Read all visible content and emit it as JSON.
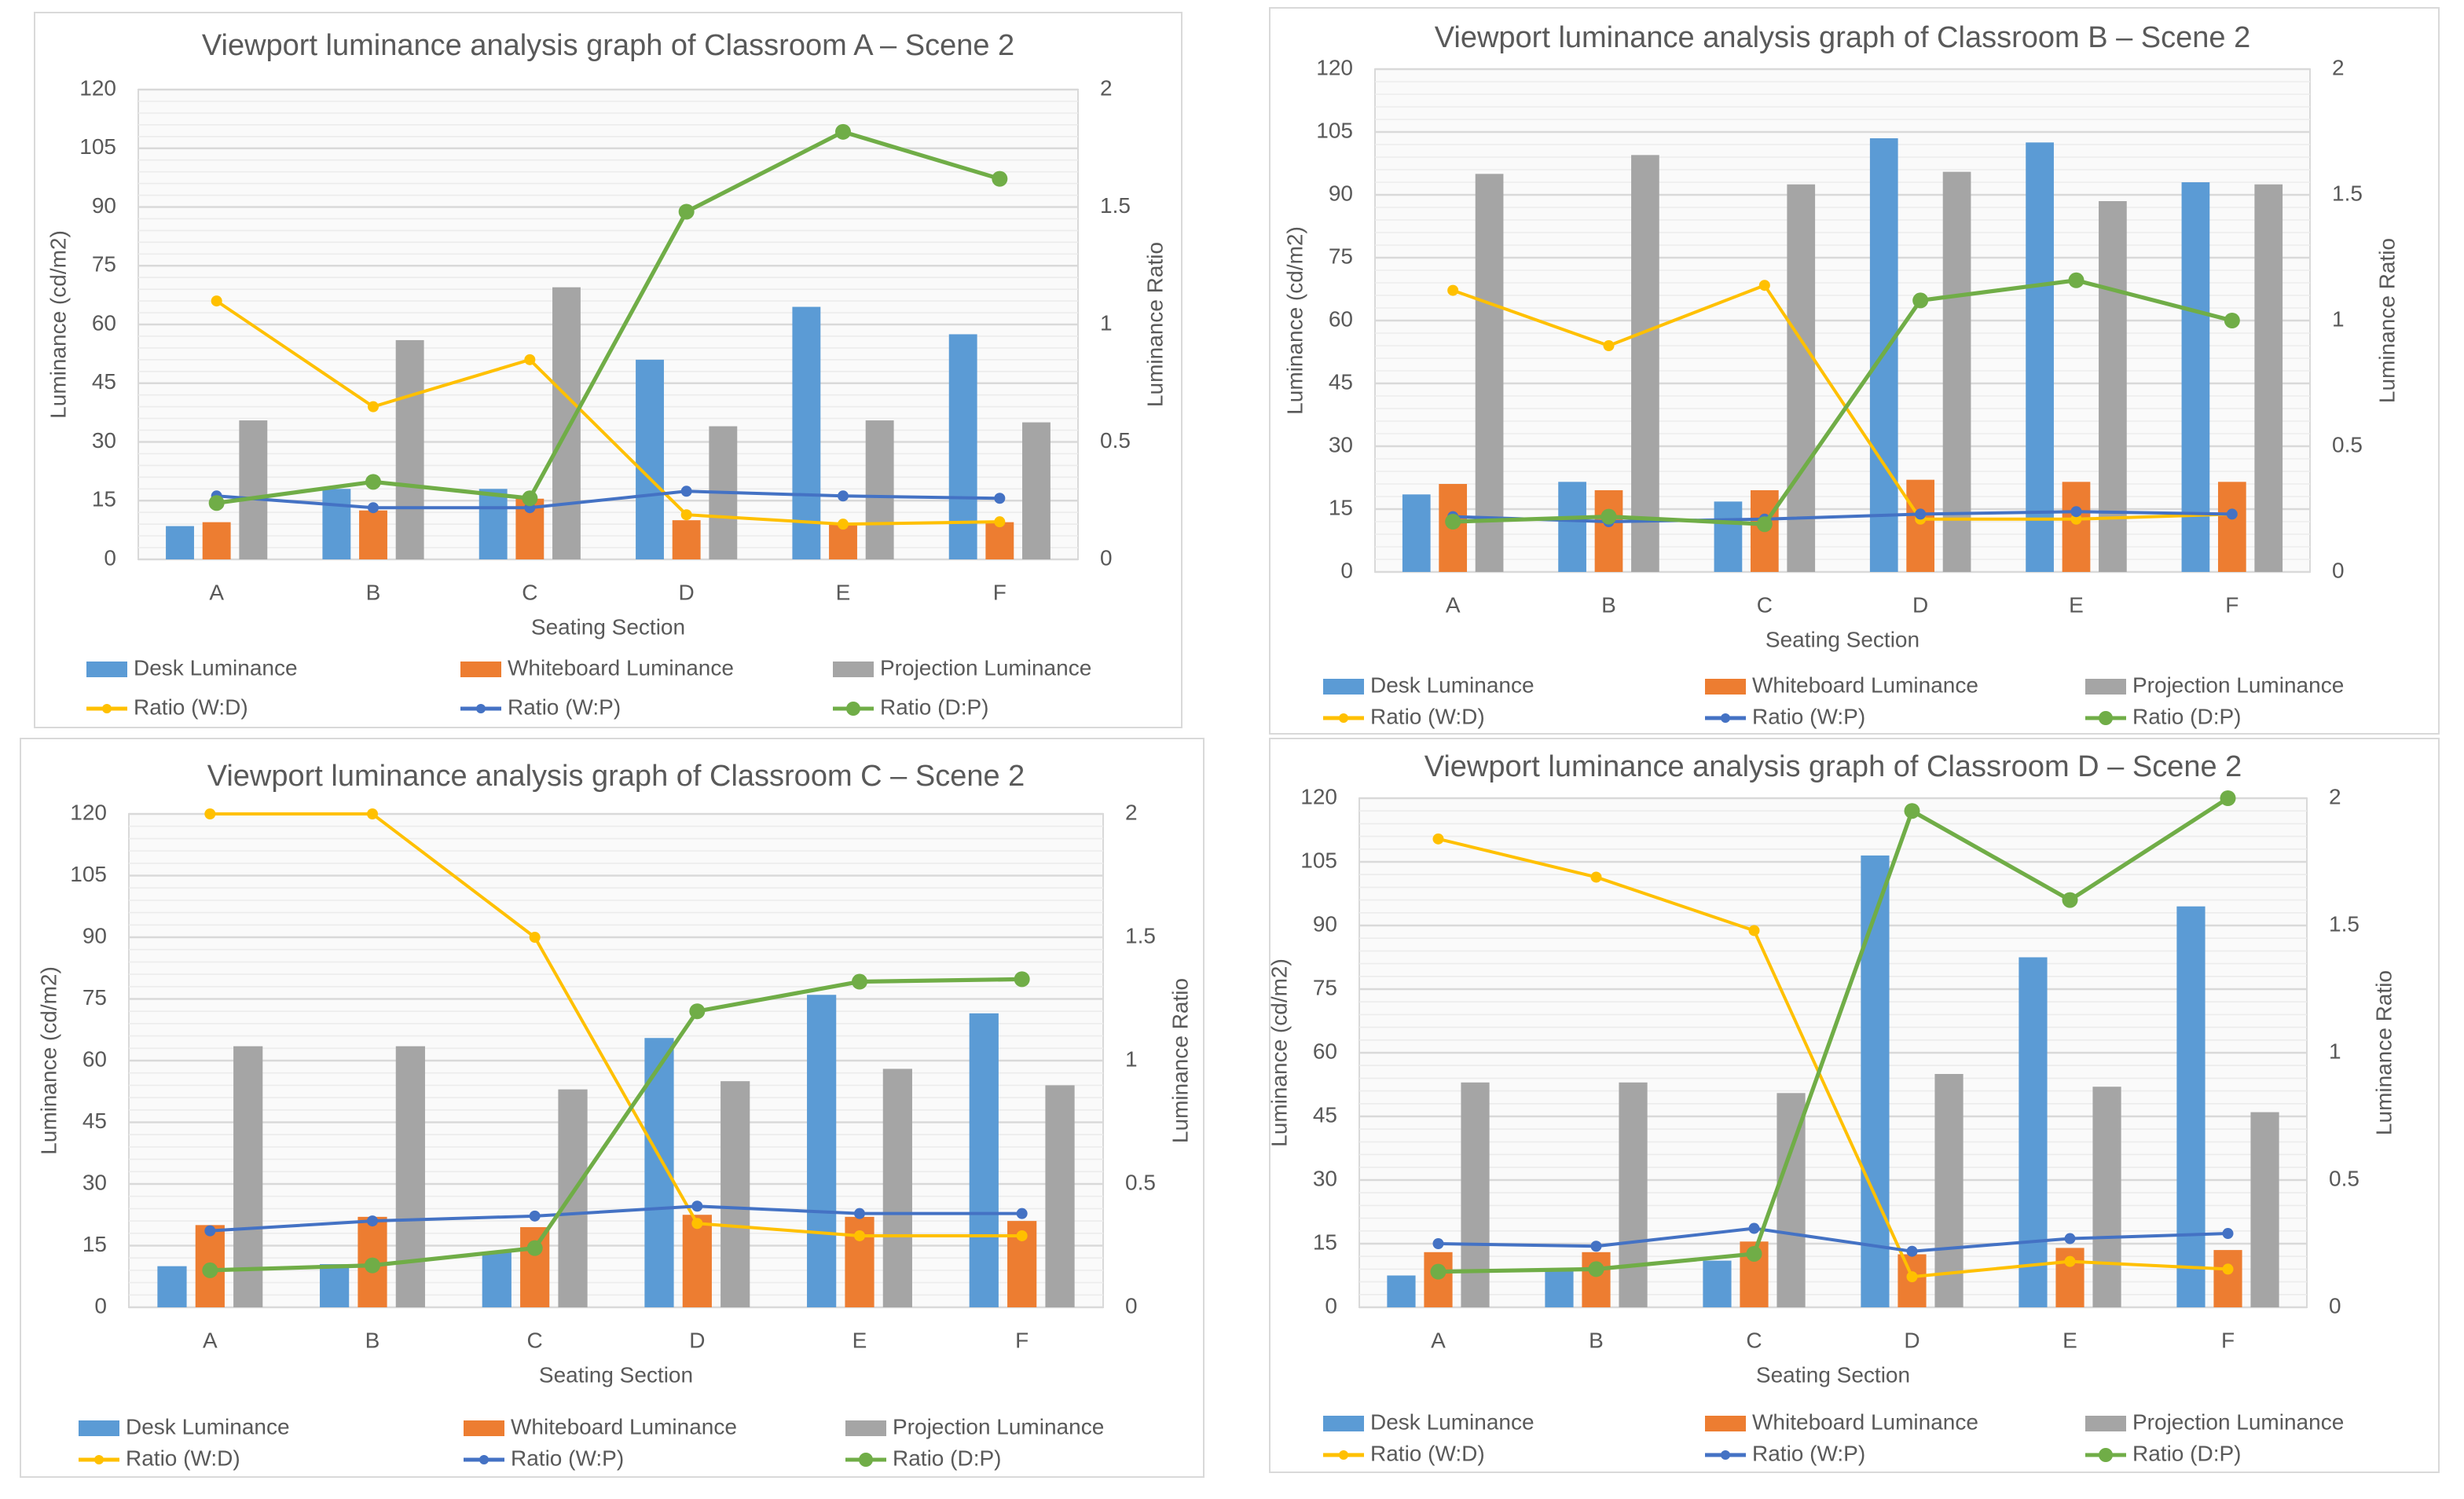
{
  "chart_data": [
    {
      "type": "bar+line",
      "title": "Viewport luminance analysis graph of Classroom A – Scene 2",
      "xlabel": "Seating Section",
      "ylabel": "Luminance (cd/m2)",
      "y2label": "Luminance Ratio",
      "categories": [
        "A",
        "B",
        "C",
        "D",
        "E",
        "F"
      ],
      "ylim": [
        0,
        120
      ],
      "yticks": [
        "0",
        "15",
        "30",
        "45",
        "60",
        "75",
        "90",
        "105",
        "120"
      ],
      "y2lim": [
        0,
        2
      ],
      "y2ticks": [
        "0",
        "0.5",
        "1",
        "1.5",
        "2"
      ],
      "grid": true,
      "legend": "bottom",
      "bar_series": [
        {
          "name": "Desk Luminance",
          "color": "#5B9BD5",
          "values": [
            8.5,
            18,
            18,
            51,
            64.5,
            57.5
          ]
        },
        {
          "name": "Whiteboard Luminance",
          "color": "#ED7D31",
          "values": [
            9.5,
            12.5,
            15.5,
            10,
            9,
            9.5
          ]
        },
        {
          "name": "Projection Luminance",
          "color": "#A5A5A5",
          "values": [
            35.5,
            56,
            69.5,
            34,
            35.5,
            35
          ]
        }
      ],
      "line_series": [
        {
          "name": "Ratio (W:D)",
          "color": "#FFC000",
          "values": [
            1.1,
            0.65,
            0.85,
            0.19,
            0.15,
            0.16
          ]
        },
        {
          "name": "Ratio (W:P)",
          "color": "#4472C4",
          "values": [
            0.27,
            0.22,
            0.22,
            0.29,
            0.27,
            0.26
          ]
        },
        {
          "name": "Ratio (D:P)",
          "color": "#70AD47",
          "values": [
            0.24,
            0.33,
            0.26,
            1.48,
            1.82,
            1.62
          ]
        }
      ]
    },
    {
      "type": "bar+line",
      "title": "Viewport luminance analysis graph of Classroom B – Scene 2",
      "xlabel": "Seating Section",
      "ylabel": "Luminance (cd/m2)",
      "y2label": "Luminance Ratio",
      "categories": [
        "A",
        "B",
        "C",
        "D",
        "E",
        "F"
      ],
      "ylim": [
        0,
        120
      ],
      "yticks": [
        "0",
        "15",
        "30",
        "45",
        "60",
        "75",
        "90",
        "105",
        "120"
      ],
      "y2lim": [
        0,
        2
      ],
      "y2ticks": [
        "0",
        "0.5",
        "1",
        "1.5",
        "2"
      ],
      "grid": true,
      "legend": "bottom",
      "bar_series": [
        {
          "name": "Desk Luminance",
          "color": "#5B9BD5",
          "values": [
            18.5,
            21.5,
            16.8,
            103.5,
            102.5,
            93
          ]
        },
        {
          "name": "Whiteboard Luminance",
          "color": "#ED7D31",
          "values": [
            21,
            19.5,
            19.5,
            22,
            21.5,
            21.5
          ]
        },
        {
          "name": "Projection Luminance",
          "color": "#A5A5A5",
          "values": [
            95,
            99.5,
            92.5,
            95.5,
            88.5,
            92.5
          ]
        }
      ],
      "line_series": [
        {
          "name": "Ratio (W:D)",
          "color": "#FFC000",
          "values": [
            1.12,
            0.9,
            1.14,
            0.21,
            0.21,
            0.23
          ]
        },
        {
          "name": "Ratio (W:P)",
          "color": "#4472C4",
          "values": [
            0.22,
            0.2,
            0.21,
            0.23,
            0.24,
            0.23
          ]
        },
        {
          "name": "Ratio (D:P)",
          "color": "#70AD47",
          "values": [
            0.2,
            0.22,
            0.19,
            1.08,
            1.16,
            1.0
          ]
        }
      ]
    },
    {
      "type": "bar+line",
      "title": "Viewport luminance analysis graph of Classroom C – Scene 2",
      "xlabel": "Seating Section",
      "ylabel": "Luminance (cd/m2)",
      "y2label": "Luminance Ratio",
      "categories": [
        "A",
        "B",
        "C",
        "D",
        "E",
        "F"
      ],
      "ylim": [
        0,
        120
      ],
      "yticks": [
        "0",
        "15",
        "30",
        "45",
        "60",
        "75",
        "90",
        "105",
        "120"
      ],
      "y2lim": [
        0,
        2
      ],
      "y2ticks": [
        "0",
        "0.5",
        "1",
        "1.5",
        "2"
      ],
      "grid": true,
      "legend": "bottom",
      "bar_series": [
        {
          "name": "Desk Luminance",
          "color": "#5B9BD5",
          "values": [
            10,
            10.5,
            13.5,
            65.5,
            76,
            71.5
          ]
        },
        {
          "name": "Whiteboard Luminance",
          "color": "#ED7D31",
          "values": [
            20,
            22,
            19.5,
            22.5,
            22,
            21
          ]
        },
        {
          "name": "Projection Luminance",
          "color": "#A5A5A5",
          "values": [
            63.5,
            63.5,
            53,
            55,
            58,
            54
          ]
        }
      ],
      "line_series": [
        {
          "name": "Ratio (W:D)",
          "color": "#FFC000",
          "values": [
            2,
            2,
            1.5,
            0.34,
            0.29,
            0.29
          ]
        },
        {
          "name": "Ratio (W:P)",
          "color": "#4472C4",
          "values": [
            0.31,
            0.35,
            0.37,
            0.41,
            0.38,
            0.38
          ]
        },
        {
          "name": "Ratio (D:P)",
          "color": "#70AD47",
          "values": [
            0.15,
            0.17,
            0.24,
            1.2,
            1.32,
            1.33
          ]
        }
      ]
    },
    {
      "type": "bar+line",
      "title": "Viewport luminance analysis graph of Classroom D – Scene 2",
      "xlabel": "Seating Section",
      "ylabel": "Luminance (cd/m2)",
      "y2label": "Luminance Ratio",
      "categories": [
        "A",
        "B",
        "C",
        "D",
        "E",
        "F"
      ],
      "ylim": [
        0,
        120
      ],
      "yticks": [
        "0",
        "15",
        "30",
        "45",
        "60",
        "75",
        "90",
        "105",
        "120"
      ],
      "y2lim": [
        0,
        2
      ],
      "y2ticks": [
        "0",
        "0.5",
        "1",
        "1.5",
        "2"
      ],
      "grid": true,
      "legend": "bottom",
      "bar_series": [
        {
          "name": "Desk Luminance",
          "color": "#5B9BD5",
          "values": [
            7.5,
            8.5,
            11,
            106.5,
            82.5,
            94.5
          ]
        },
        {
          "name": "Whiteboard Luminance",
          "color": "#ED7D31",
          "values": [
            13,
            13,
            15.5,
            12.5,
            14,
            13.5
          ]
        },
        {
          "name": "Projection Luminance",
          "color": "#A5A5A5",
          "values": [
            53,
            53,
            50.5,
            55,
            52,
            46
          ]
        }
      ],
      "line_series": [
        {
          "name": "Ratio (W:D)",
          "color": "#FFC000",
          "values": [
            1.84,
            1.69,
            1.48,
            0.12,
            0.18,
            0.15
          ]
        },
        {
          "name": "Ratio (W:P)",
          "color": "#4472C4",
          "values": [
            0.25,
            0.24,
            0.31,
            0.22,
            0.27,
            0.29
          ]
        },
        {
          "name": "Ratio (D:P)",
          "color": "#70AD47",
          "values": [
            0.14,
            0.15,
            0.21,
            1.95,
            1.6,
            2.0
          ]
        }
      ]
    }
  ]
}
